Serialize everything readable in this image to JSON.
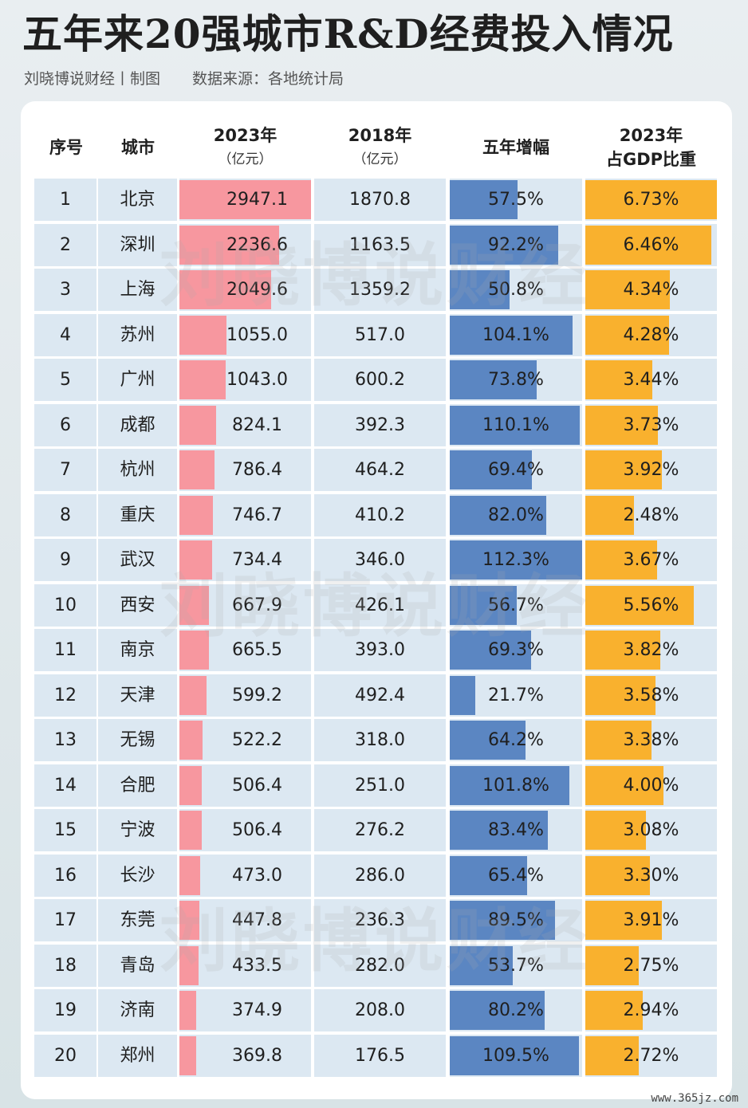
{
  "title": "五年来20强城市R&D经费投入情况",
  "credit": "刘晓博说财经丨制图",
  "source": "数据来源：各地统计局",
  "watermark": "刘晓博说财经",
  "footer": "www.365jz.com",
  "colors": {
    "rd2023_bar": "#f7979f",
    "growth_bar": "#5b86c2",
    "gdp_share_bar": "#f9b12e",
    "row_highlight": "#dce8f2"
  },
  "chart_data": {
    "type": "table",
    "headers": {
      "rank": "序号",
      "city": "城市",
      "rd2023": "2023年",
      "rd2023_unit": "（亿元）",
      "rd2018": "2018年",
      "rd2018_unit": "（亿元）",
      "growth": "五年增幅",
      "gdp_share_line1": "2023年",
      "gdp_share_line2": "占GDP比重"
    },
    "rows": [
      {
        "rank": "1",
        "city": "北京",
        "rd2023": "2947.1",
        "rd2018": "1870.8",
        "growth": "57.5%",
        "gdp_share": "6.73%"
      },
      {
        "rank": "2",
        "city": "深圳",
        "rd2023": "2236.6",
        "rd2018": "1163.5",
        "growth": "92.2%",
        "gdp_share": "6.46%"
      },
      {
        "rank": "3",
        "city": "上海",
        "rd2023": "2049.6",
        "rd2018": "1359.2",
        "growth": "50.8%",
        "gdp_share": "4.34%"
      },
      {
        "rank": "4",
        "city": "苏州",
        "rd2023": "1055.0",
        "rd2018": "517.0",
        "growth": "104.1%",
        "gdp_share": "4.28%"
      },
      {
        "rank": "5",
        "city": "广州",
        "rd2023": "1043.0",
        "rd2018": "600.2",
        "growth": "73.8%",
        "gdp_share": "3.44%"
      },
      {
        "rank": "6",
        "city": "成都",
        "rd2023": "824.1",
        "rd2018": "392.3",
        "growth": "110.1%",
        "gdp_share": "3.73%"
      },
      {
        "rank": "7",
        "city": "杭州",
        "rd2023": "786.4",
        "rd2018": "464.2",
        "growth": "69.4%",
        "gdp_share": "3.92%"
      },
      {
        "rank": "8",
        "city": "重庆",
        "rd2023": "746.7",
        "rd2018": "410.2",
        "growth": "82.0%",
        "gdp_share": "2.48%"
      },
      {
        "rank": "9",
        "city": "武汉",
        "rd2023": "734.4",
        "rd2018": "346.0",
        "growth": "112.3%",
        "gdp_share": "3.67%"
      },
      {
        "rank": "10",
        "city": "西安",
        "rd2023": "667.9",
        "rd2018": "426.1",
        "growth": "56.7%",
        "gdp_share": "5.56%"
      },
      {
        "rank": "11",
        "city": "南京",
        "rd2023": "665.5",
        "rd2018": "393.0",
        "growth": "69.3%",
        "gdp_share": "3.82%"
      },
      {
        "rank": "12",
        "city": "天津",
        "rd2023": "599.2",
        "rd2018": "492.4",
        "growth": "21.7%",
        "gdp_share": "3.58%"
      },
      {
        "rank": "13",
        "city": "无锡",
        "rd2023": "522.2",
        "rd2018": "318.0",
        "growth": "64.2%",
        "gdp_share": "3.38%"
      },
      {
        "rank": "14",
        "city": "合肥",
        "rd2023": "506.4",
        "rd2018": "251.0",
        "growth": "101.8%",
        "gdp_share": "4.00%"
      },
      {
        "rank": "15",
        "city": "宁波",
        "rd2023": "506.4",
        "rd2018": "276.2",
        "growth": "83.4%",
        "gdp_share": "3.08%"
      },
      {
        "rank": "16",
        "city": "长沙",
        "rd2023": "473.0",
        "rd2018": "286.0",
        "growth": "65.4%",
        "gdp_share": "3.30%"
      },
      {
        "rank": "17",
        "city": "东莞",
        "rd2023": "447.8",
        "rd2018": "236.3",
        "growth": "89.5%",
        "gdp_share": "3.91%"
      },
      {
        "rank": "18",
        "city": "青岛",
        "rd2023": "433.5",
        "rd2018": "282.0",
        "growth": "53.7%",
        "gdp_share": "2.75%"
      },
      {
        "rank": "19",
        "city": "济南",
        "rd2023": "374.9",
        "rd2018": "208.0",
        "growth": "80.2%",
        "gdp_share": "2.94%"
      },
      {
        "rank": "20",
        "city": "郑州",
        "rd2023": "369.8",
        "rd2018": "176.5",
        "growth": "109.5%",
        "gdp_share": "2.72%"
      }
    ]
  }
}
